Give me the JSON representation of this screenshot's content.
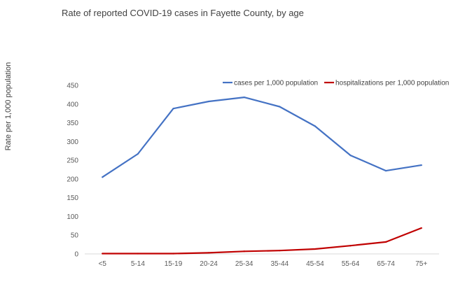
{
  "chart_data": {
    "type": "line",
    "title": "Rate of reported COVID-19 cases in Fayette County, by age",
    "xlabel": "",
    "ylabel": "Rate per 1,000 population",
    "categories": [
      "<5",
      "5-14",
      "15-19",
      "20-24",
      "25-34",
      "35-44",
      "45-54",
      "55-64",
      "65-74",
      "75+"
    ],
    "ylim": [
      0,
      450
    ],
    "yticks": [
      0,
      50,
      100,
      150,
      200,
      250,
      300,
      350,
      400,
      450
    ],
    "grid": false,
    "legend_position": "top-right",
    "series": [
      {
        "name": "cases per 1,000 population",
        "color": "#4472c4",
        "values": [
          205,
          267,
          388,
          407,
          418,
          393,
          341,
          263,
          222,
          237
        ]
      },
      {
        "name": "hospitalizations per 1,000 population",
        "color": "#c00000",
        "values": [
          1,
          1,
          1,
          3,
          7,
          9,
          13,
          22,
          32,
          69
        ]
      }
    ]
  }
}
